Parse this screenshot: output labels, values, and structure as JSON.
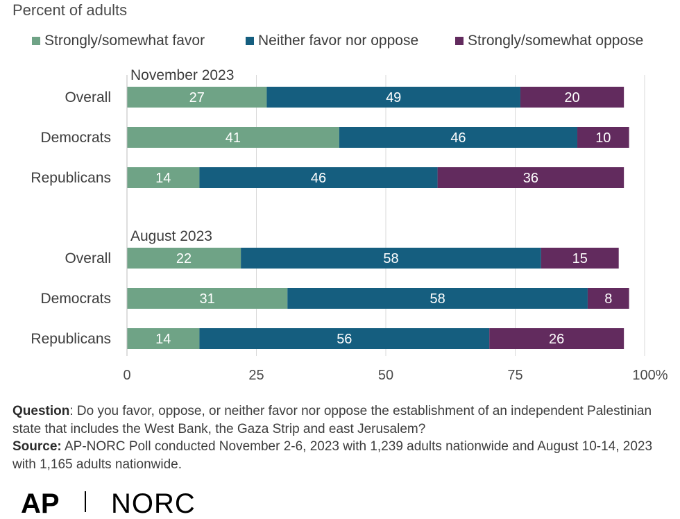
{
  "subtitle": "Percent of adults",
  "legend": [
    {
      "label": "Strongly/somewhat favor",
      "color": "#6fa386"
    },
    {
      "label": "Neither favor nor oppose",
      "color": "#155e7f"
    },
    {
      "label": "Strongly/somewhat oppose",
      "color": "#622b5e"
    }
  ],
  "chart_data": {
    "type": "bar",
    "orientation": "horizontal",
    "stacked": true,
    "title": "",
    "xlabel": "",
    "ylabel": "",
    "xlim": [
      0,
      100
    ],
    "ticks": [
      "0",
      "25",
      "50",
      "75",
      "100%"
    ],
    "tick_values": [
      0,
      25,
      50,
      75,
      100
    ],
    "grid": true,
    "legend_position": "top",
    "series_names": [
      "Strongly/somewhat favor",
      "Neither favor nor oppose",
      "Strongly/somewhat oppose"
    ],
    "groups": [
      {
        "label": "November 2023",
        "rows": [
          {
            "label": "Overall",
            "values": [
              27,
              49,
              20
            ]
          },
          {
            "label": "Democrats",
            "values": [
              41,
              46,
              10
            ]
          },
          {
            "label": "Republicans",
            "values": [
              14,
              46,
              36
            ]
          }
        ]
      },
      {
        "label": "August 2023",
        "rows": [
          {
            "label": "Overall",
            "values": [
              22,
              58,
              15
            ]
          },
          {
            "label": "Democrats",
            "values": [
              31,
              58,
              8
            ]
          },
          {
            "label": "Republicans",
            "values": [
              14,
              56,
              26
            ]
          }
        ]
      }
    ]
  },
  "notes": {
    "question_label": "Question",
    "question_text": ": Do you favor, oppose, or neither favor nor oppose the establishment of an independent Palestinian state that includes the West Bank, the Gaza Strip  and east Jerusalem?",
    "source_label": "Source:",
    "source_text": " AP-NORC Poll conducted November 2-6, 2023 with 1,239 adults nationwide and August 10-14, 2023 with 1,165 adults nationwide."
  },
  "logos": {
    "ap": "AP",
    "norc": "NORC"
  }
}
